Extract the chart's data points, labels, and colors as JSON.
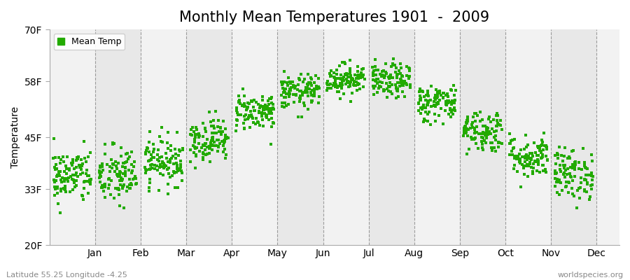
{
  "title": "Monthly Mean Temperatures 1901  -  2009",
  "ylabel": "Temperature",
  "ytick_labels": [
    "20F",
    "33F",
    "45F",
    "58F",
    "70F"
  ],
  "ytick_values": [
    20,
    33,
    45,
    58,
    70
  ],
  "ylim": [
    20,
    70
  ],
  "month_labels": [
    "Jan",
    "Feb",
    "Mar",
    "Apr",
    "May",
    "Jun",
    "Jul",
    "Aug",
    "Sep",
    "Oct",
    "Nov",
    "Dec"
  ],
  "dot_color": "#22AA00",
  "panel_light": "#F2F2F2",
  "panel_dark": "#E8E8E8",
  "title_fontsize": 15,
  "axis_fontsize": 10,
  "tick_fontsize": 10,
  "legend_label": "Mean Temp",
  "footer_left": "Latitude 55.25 Longitude -4.25",
  "footer_right": "worldspecies.org",
  "n_years": 109,
  "monthly_mean_F": [
    36.0,
    36.0,
    39.5,
    44.5,
    51.0,
    55.5,
    58.5,
    58.0,
    53.0,
    46.5,
    40.5,
    36.5
  ],
  "monthly_std_F": [
    3.2,
    3.5,
    2.8,
    2.5,
    2.2,
    2.0,
    1.8,
    2.0,
    2.2,
    2.5,
    2.5,
    3.0
  ]
}
